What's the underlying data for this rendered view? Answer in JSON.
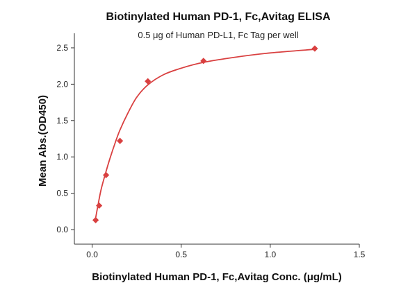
{
  "chart_data": {
    "type": "scatter",
    "title": "Biotinylated Human PD-1, Fc,Avitag ELISA",
    "subtitle": "0.5 μg of Human PD-L1, Fc Tag per well",
    "xlabel": "Biotinylated Human PD-1, Fc,Avitag Conc. (μg/mL)",
    "ylabel": "Mean Abs.(OD450)",
    "xlim": [
      -0.1,
      1.5
    ],
    "ylim": [
      -0.2,
      2.7
    ],
    "x_ticks": [
      0.0,
      0.5,
      1.0,
      1.5
    ],
    "x_tick_labels": [
      "0.0",
      "0.5",
      "1.0",
      "1.5"
    ],
    "y_ticks": [
      0.0,
      0.5,
      1.0,
      1.5,
      2.0,
      2.5
    ],
    "y_tick_labels": [
      "0.0",
      "0.5",
      "1.0",
      "1.5",
      "2.0",
      "2.5"
    ],
    "grid": false,
    "legend": "none",
    "series": [
      {
        "type": "scatter",
        "marker": "diamond",
        "color": "#d94040",
        "x": [
          0.0195,
          0.039,
          0.078,
          0.156,
          0.3125,
          0.625,
          1.25
        ],
        "y": [
          0.13,
          0.33,
          0.75,
          1.22,
          2.04,
          2.32,
          2.49
        ]
      },
      {
        "type": "line",
        "fit": "4-parameter logistic",
        "color": "#d94040",
        "x": [
          0.0195,
          0.03,
          0.05,
          0.078,
          0.1,
          0.13,
          0.156,
          0.2,
          0.25,
          0.3125,
          0.4,
          0.5,
          0.625,
          0.8,
          1.0,
          1.25
        ],
        "y": [
          0.16,
          0.3,
          0.55,
          0.8,
          0.98,
          1.2,
          1.37,
          1.6,
          1.82,
          1.99,
          2.13,
          2.22,
          2.3,
          2.37,
          2.43,
          2.48
        ]
      }
    ]
  }
}
